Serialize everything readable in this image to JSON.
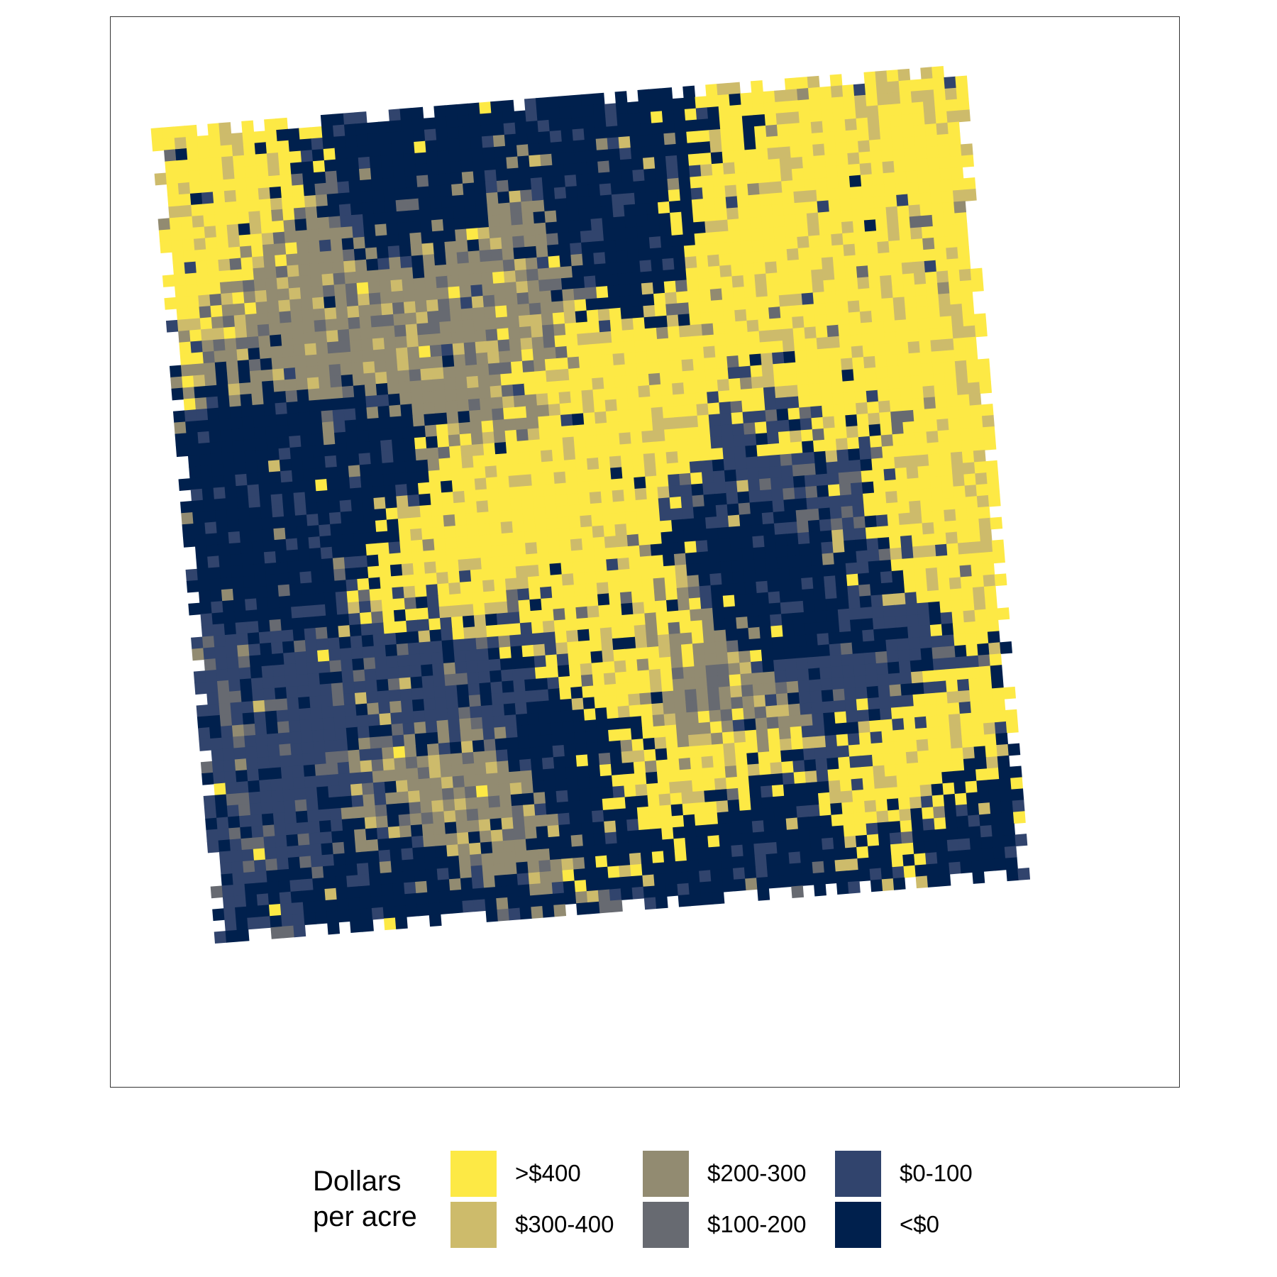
{
  "legend": {
    "title_line1": "Dollars",
    "title_line2": "per acre",
    "items": [
      {
        "label": ">$400",
        "color": "#FDE945"
      },
      {
        "label": "$300-400",
        "color": "#CDBB6B"
      },
      {
        "label": "$200-300",
        "color": "#928B71"
      },
      {
        "label": "$100-200",
        "color": "#676A71"
      },
      {
        "label": "$0-100",
        "color": "#31446D"
      },
      {
        "label": "<$0",
        "color": "#00204D"
      }
    ]
  },
  "chart_data": {
    "type": "heatmap",
    "description_values": "raster of per-acre profit classes over a field",
    "classes": [
      ">$400",
      "$300-400",
      "$200-300",
      "$100-200",
      "$0-100",
      "<$0"
    ],
    "grid": {
      "columns": 72,
      "rows": 72
    },
    "rotation_deg": -4.5,
    "class_regions": [
      {
        "class": ">$400",
        "centers": [
          [
            0.72,
            0.22
          ],
          [
            0.55,
            0.35
          ],
          [
            0.38,
            0.58
          ],
          [
            0.83,
            0.42
          ],
          [
            0.06,
            0.12
          ],
          [
            0.52,
            0.72
          ],
          [
            0.92,
            0.55
          ],
          [
            0.62,
            0.83
          ],
          [
            0.88,
            0.84
          ]
        ]
      },
      {
        "class": "<$0",
        "centers": [
          [
            0.14,
            0.45
          ],
          [
            0.3,
            0.1
          ],
          [
            0.45,
            0.78
          ],
          [
            0.25,
            0.93
          ],
          [
            0.74,
            0.62
          ],
          [
            0.56,
            0.18
          ],
          [
            0.93,
            0.94
          ],
          [
            0.66,
            0.93
          ]
        ]
      },
      {
        "class": "$0-100",
        "centers": [
          [
            0.82,
            0.74
          ],
          [
            0.09,
            0.78
          ],
          [
            0.35,
            0.7
          ],
          [
            0.78,
            0.5
          ]
        ]
      },
      {
        "class": "$200-300",
        "centers": [
          [
            0.3,
            0.85
          ],
          [
            0.18,
            0.22
          ],
          [
            0.4,
            0.24
          ],
          [
            0.62,
            0.75
          ]
        ]
      }
    ]
  }
}
